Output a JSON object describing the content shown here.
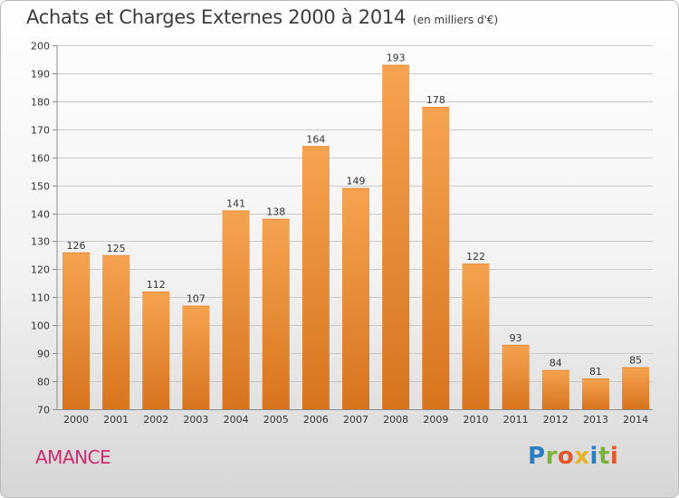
{
  "header": {
    "title": "Achats et Charges Externes 2000 à 2014",
    "subtitle": "(en milliers d'€)"
  },
  "footer": {
    "town": "AMANCE",
    "brand": "Proxiti"
  },
  "colors": {
    "bar_light": "#f5a350",
    "bar_dark": "#d8731d",
    "town": "#d02a6e"
  },
  "chart_data": {
    "type": "bar",
    "categories": [
      "2000",
      "2001",
      "2002",
      "2003",
      "2004",
      "2005",
      "2006",
      "2007",
      "2008",
      "2009",
      "2010",
      "2011",
      "2012",
      "2013",
      "2014"
    ],
    "values": [
      126,
      125,
      112,
      107,
      141,
      138,
      164,
      149,
      193,
      178,
      122,
      93,
      84,
      81,
      85
    ],
    "ylim": [
      70,
      200
    ],
    "yticks": [
      70,
      80,
      90,
      100,
      110,
      120,
      130,
      140,
      150,
      160,
      170,
      180,
      190,
      200
    ],
    "grid": true
  }
}
